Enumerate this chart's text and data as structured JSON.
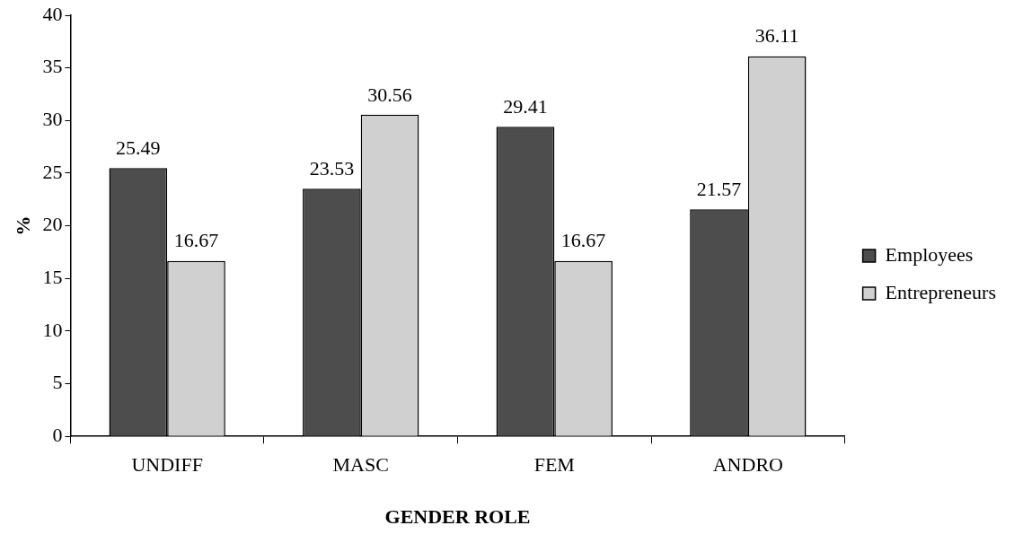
{
  "chart_data": {
    "type": "bar",
    "xlabel": "GENDER ROLE",
    "ylabel": "%",
    "categories": [
      "UNDIFF",
      "MASC",
      "FEM",
      "ANDRO"
    ],
    "series": [
      {
        "name": "Employees",
        "color": "#4d4d4d",
        "values": [
          25.49,
          23.53,
          29.41,
          21.57
        ]
      },
      {
        "name": "Entrepreneurs",
        "color": "#d0d0d0",
        "values": [
          16.67,
          30.56,
          16.67,
          36.11
        ]
      }
    ],
    "ylim": [
      0,
      40
    ],
    "yticks": [
      0,
      5,
      10,
      15,
      20,
      25,
      30,
      35,
      40
    ],
    "grid": false,
    "legend": "right",
    "data_labels": true
  }
}
